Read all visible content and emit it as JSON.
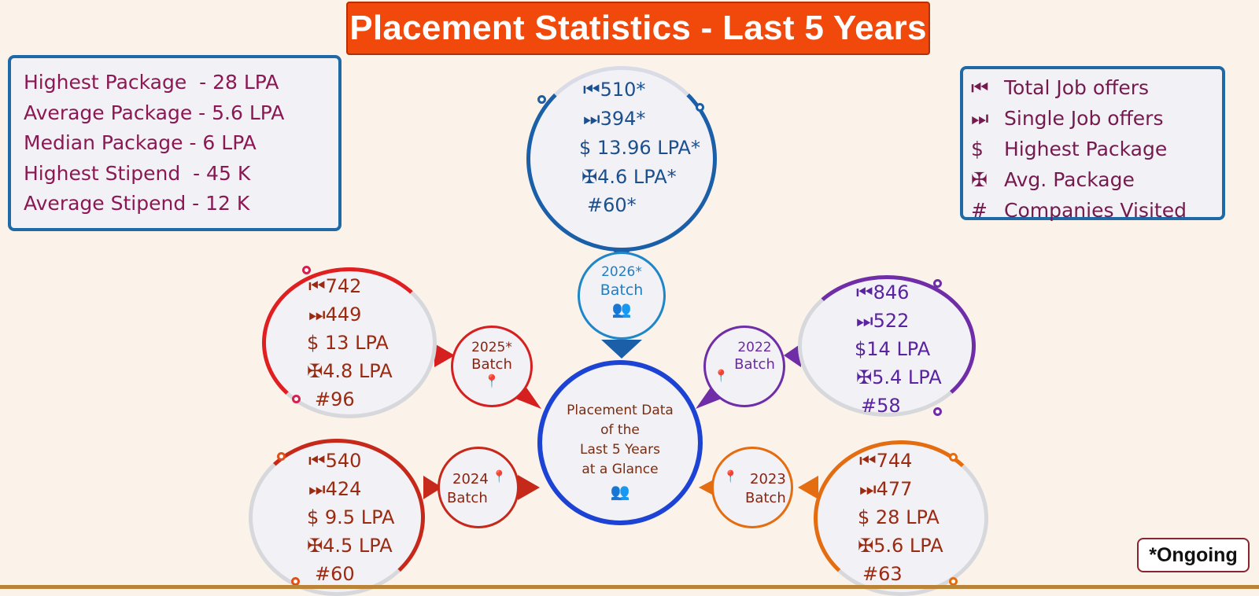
{
  "title": "Placement Statistics - Last 5 Years",
  "summary": [
    "Highest Package  - 28 LPA",
    "Average Package - 5.6 LPA",
    "Median Package - 6 LPA",
    "Highest Stipend  - 45 K",
    "Average Stipend - 12 K"
  ],
  "legend": [
    {
      "symbol": "⏮",
      "label": "Total Job offers"
    },
    {
      "symbol": "⏭",
      "label": "Single Job offers"
    },
    {
      "symbol": "$",
      "label": "Highest Package"
    },
    {
      "symbol": "✠",
      "label": "Avg. Package"
    },
    {
      "symbol": "#",
      "label": "Companies Visited"
    }
  ],
  "center": {
    "lines": [
      "Placement Data",
      "of the",
      "Last 5 Years",
      "at a Glance"
    ],
    "color": "#1d43d4"
  },
  "batches": {
    "b2026": {
      "batch_lines": [
        "2026*",
        "Batch"
      ],
      "stats": [
        "⏮510*",
        "⏭394*",
        "$ 13.96 LPA*",
        "✠4.6 LPA*",
        "#60*"
      ],
      "color": "#1b5fa8"
    },
    "b2025": {
      "batch_lines": [
        "2025*",
        "Batch"
      ],
      "stats": [
        "⏮742",
        "⏭449",
        "$ 13 LPA",
        "✠4.8 LPA",
        "#96"
      ],
      "color": "#d62020"
    },
    "b2024": {
      "batch_lines": [
        "2024",
        "Batch"
      ],
      "stats": [
        "⏮540",
        "⏭424",
        "$ 9.5 LPA",
        "✠4.5 LPA",
        "#60"
      ],
      "color": "#c6281a"
    },
    "b2023": {
      "batch_lines": [
        "2023",
        "Batch"
      ],
      "stats": [
        "⏮744",
        "⏭477",
        "$ 28 LPA",
        "✠5.6 LPA",
        "#63"
      ],
      "color": "#e36d10"
    },
    "b2022": {
      "batch_lines": [
        "2022",
        "Batch"
      ],
      "stats": [
        "⏮846",
        "⏭522",
        "$14 LPA",
        "✠5.4 LPA",
        "#58"
      ],
      "color": "#6f2da8"
    }
  },
  "note": "*Ongoing"
}
